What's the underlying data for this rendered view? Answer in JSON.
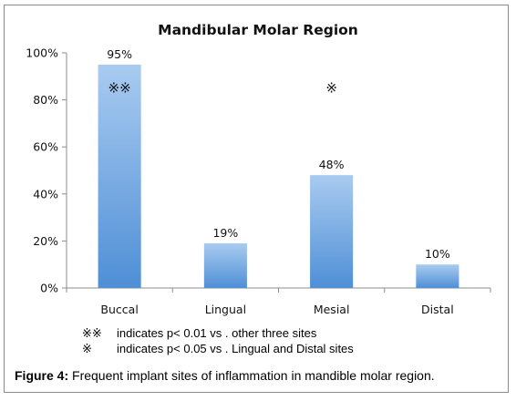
{
  "chart_data": {
    "type": "bar",
    "title": "Mandibular Molar Region",
    "categories": [
      "Buccal",
      "Lingual",
      "Mesial",
      "Distal"
    ],
    "values": [
      95,
      19,
      48,
      10
    ],
    "value_labels": [
      "95%",
      "19%",
      "48%",
      "10%"
    ],
    "ylim": [
      0,
      100
    ],
    "yticks": [
      "0%",
      "20%",
      "40%",
      "60%",
      "80%",
      "100%"
    ],
    "xlabel": "",
    "ylabel": "",
    "grid": false,
    "legend": "none",
    "bar_color": "#5b9bd5",
    "annotations": [
      {
        "category": "Buccal",
        "text": "※※"
      },
      {
        "category": "Mesial",
        "text": "※"
      }
    ]
  },
  "notes": [
    {
      "symbol": "※※",
      "text": "indicates  p< 0.01  vs . other three sites"
    },
    {
      "symbol": "※",
      "text": "indicates  p< 0.05  vs . Lingual and Distal sites"
    }
  ],
  "caption": {
    "label": "Figure 4:",
    "text": " Frequent implant sites of inflammation in mandible molar region."
  }
}
